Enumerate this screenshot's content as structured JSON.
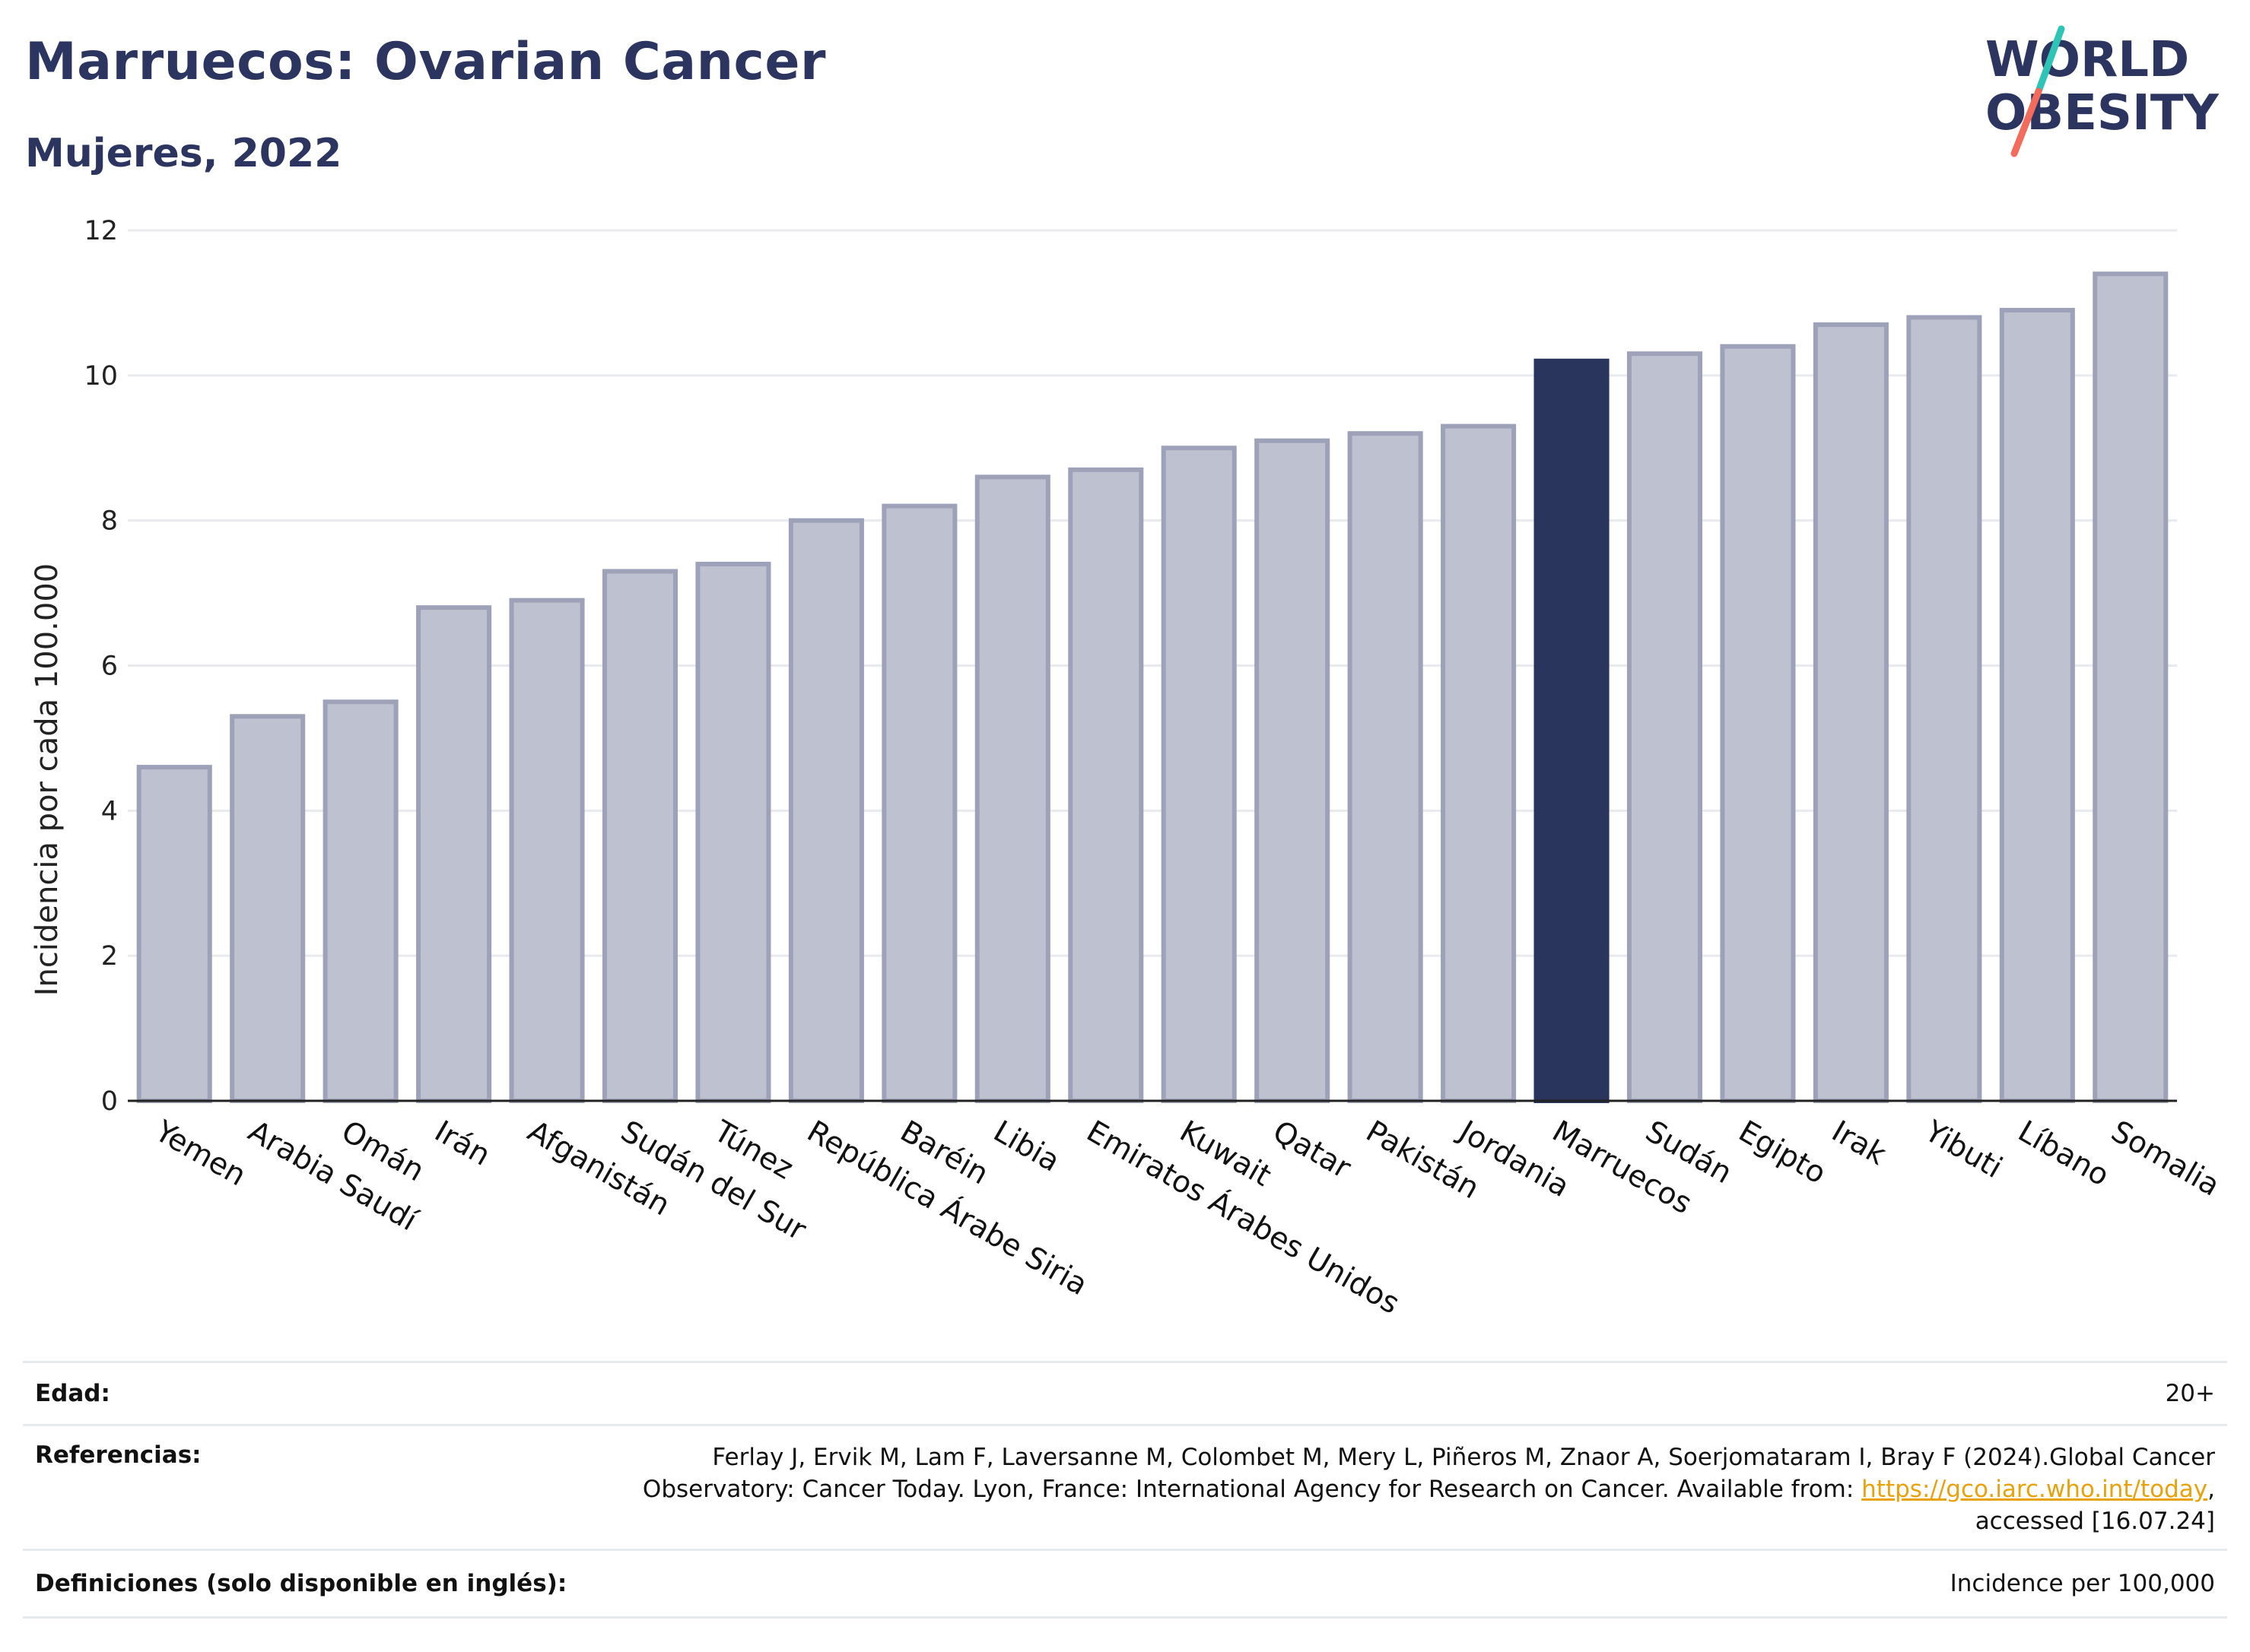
{
  "header": {
    "title": "Marruecos: Ovarian Cancer",
    "subtitle": "Mujeres, 2022"
  },
  "logo": {
    "line1": "WORLD",
    "line2": "OBESITY",
    "accent_colors": [
      "#2ec4b6",
      "#f26b5b"
    ]
  },
  "colors": {
    "highlight": "#2a355e",
    "bar_fill": "#bec1cf",
    "bar_stroke": "#9da2b9",
    "text": "#2c355f",
    "link": "#e8a20c"
  },
  "chart_data": {
    "type": "bar",
    "ylabel": "Incidencia por cada 100.000",
    "xlabel": "",
    "ylim": [
      0,
      12
    ],
    "yticks": [
      0,
      2,
      4,
      6,
      8,
      10,
      12
    ],
    "grid": true,
    "highlight": "Marruecos",
    "categories": [
      "Yemen",
      "Arabia Saudí",
      "Omán",
      "Irán",
      "Afganistán",
      "Sudán del Sur",
      "Túnez",
      "República Árabe Siria",
      "Baréin",
      "Libia",
      "Emiratos Árabes Unidos",
      "Kuwait",
      "Qatar",
      "Pakistán",
      "Jordania",
      "Marruecos",
      "Sudán",
      "Egipto",
      "Irak",
      "Yibuti",
      "Líbano",
      "Somalia"
    ],
    "values": [
      4.6,
      5.3,
      5.5,
      6.8,
      6.9,
      7.3,
      7.4,
      8.0,
      8.2,
      8.6,
      8.7,
      9.0,
      9.1,
      9.2,
      9.3,
      10.2,
      10.3,
      10.4,
      10.7,
      10.8,
      10.9,
      11.4
    ]
  },
  "info": {
    "age_label": "Edad:",
    "age_value": "20+",
    "ref_label": "Referencias:",
    "ref_text_1": "Ferlay J, Ervik M, Lam F, Laversanne M, Colombet M, Mery L, Piñeros M, Znaor A, Soerjomataram I, Bray F (2024).Global Cancer Observatory: Cancer Today. Lyon, France: International Agency for Research on Cancer. Available from: ",
    "ref_link": "https://gco.iarc.who.int/today",
    "ref_text_2": ", accessed [16.07.24]",
    "def_label": "Definiciones (solo disponible en inglés):",
    "def_value": "Incidence per 100,000"
  }
}
